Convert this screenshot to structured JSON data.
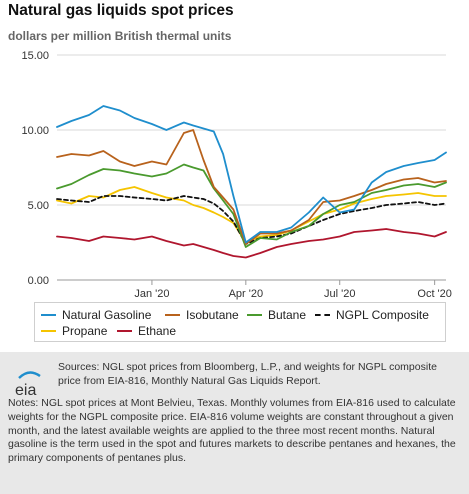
{
  "chart_data": {
    "type": "line",
    "title": "Natural gas liquids spot prices",
    "subtitle": "dollars per million British thermal units",
    "ylim": [
      0,
      15
    ],
    "y_ticks": [
      "0.00",
      "5.00",
      "10.00",
      "15.00"
    ],
    "x_tick_labels": [
      "Jan '20",
      "Apr '20",
      "Jul '20",
      "Oct '20"
    ],
    "x_ticks": [
      "2020-01-01",
      "2020-04-01",
      "2020-07-01",
      "2020-10-01"
    ],
    "x_range": [
      "2019-10-01",
      "2020-10-12"
    ],
    "grid": "horizontal",
    "legend_position": "bottom",
    "x": [
      "2019-10-01",
      "2019-10-15",
      "2019-11-01",
      "2019-11-15",
      "2019-12-01",
      "2019-12-15",
      "2020-01-01",
      "2020-01-15",
      "2020-02-01",
      "2020-02-10",
      "2020-02-20",
      "2020-03-01",
      "2020-03-10",
      "2020-03-20",
      "2020-04-01",
      "2020-04-15",
      "2020-05-01",
      "2020-05-15",
      "2020-06-01",
      "2020-06-15",
      "2020-07-01",
      "2020-07-15",
      "2020-08-01",
      "2020-08-15",
      "2020-09-01",
      "2020-09-15",
      "2020-10-01",
      "2020-10-12"
    ],
    "series": [
      {
        "name": "Natural Gasoline",
        "color": "#1f8ecd",
        "dash": false,
        "values": [
          10.2,
          10.6,
          11.0,
          11.6,
          11.3,
          10.8,
          10.4,
          10.0,
          10.5,
          10.3,
          10.1,
          9.9,
          8.4,
          5.6,
          2.5,
          3.2,
          3.2,
          3.5,
          4.5,
          5.5,
          4.5,
          4.7,
          6.5,
          7.2,
          7.6,
          7.8,
          8.0,
          8.5
        ]
      },
      {
        "name": "Isobutane",
        "color": "#b8621c",
        "dash": false,
        "values": [
          8.2,
          8.4,
          8.3,
          8.6,
          7.9,
          7.6,
          7.9,
          7.7,
          9.8,
          10.0,
          8.0,
          6.2,
          5.5,
          4.7,
          2.4,
          3.1,
          3.1,
          3.3,
          4.0,
          5.2,
          5.3,
          5.6,
          6.0,
          6.4,
          6.7,
          6.8,
          6.5,
          6.6
        ]
      },
      {
        "name": "Butane",
        "color": "#4a9a2e",
        "dash": false,
        "values": [
          6.1,
          6.4,
          7.0,
          7.4,
          7.3,
          7.1,
          6.9,
          7.1,
          7.7,
          7.5,
          7.3,
          6.1,
          5.3,
          4.4,
          2.2,
          2.8,
          2.7,
          3.2,
          3.6,
          4.4,
          5.0,
          5.2,
          5.8,
          6.0,
          6.3,
          6.4,
          6.2,
          6.5
        ]
      },
      {
        "name": "NGPL Composite",
        "color": "#111111",
        "dash": true,
        "values": [
          5.4,
          5.3,
          5.2,
          5.6,
          5.6,
          5.5,
          5.4,
          5.3,
          5.6,
          5.5,
          5.4,
          5.1,
          4.6,
          3.9,
          2.4,
          2.8,
          2.9,
          3.1,
          3.6,
          4.0,
          4.4,
          4.6,
          4.8,
          5.0,
          5.1,
          5.2,
          5.0,
          5.1
        ]
      },
      {
        "name": "Propane",
        "color": "#f5c400",
        "dash": false,
        "values": [
          5.3,
          5.1,
          5.6,
          5.5,
          6.0,
          6.2,
          5.8,
          5.5,
          5.3,
          5.0,
          4.8,
          4.5,
          4.2,
          3.8,
          2.5,
          2.9,
          3.0,
          3.3,
          3.9,
          4.4,
          4.7,
          5.1,
          5.4,
          5.6,
          5.7,
          5.8,
          5.6,
          5.6
        ]
      },
      {
        "name": "Ethane",
        "color": "#b0162e",
        "dash": false,
        "values": [
          2.9,
          2.8,
          2.6,
          2.9,
          2.8,
          2.7,
          2.9,
          2.6,
          2.3,
          2.4,
          2.2,
          2.0,
          1.8,
          1.6,
          1.5,
          1.8,
          2.2,
          2.4,
          2.6,
          2.7,
          2.9,
          3.2,
          3.3,
          3.4,
          3.2,
          3.1,
          2.9,
          3.2
        ]
      }
    ]
  },
  "footer": {
    "logo_text": "eia",
    "sources": "Sources: NGL spot prices from Bloomberg, L.P., and weights for NGPL composite price from EIA-816, Monthly Natural Gas Liquids Report.",
    "notes": "Notes: NGL spot prices at Mont Belvieu, Texas. Monthly volumes from EIA-816 used to calculate weights for the NGPL composite price. EIA-816 volume weights are constant throughout a given month, and the latest available weights are applied to the three most recent months. Natural gasoline is the term used in the spot and futures markets to describe pentanes and hexanes, the primary components of pentanes plus."
  }
}
